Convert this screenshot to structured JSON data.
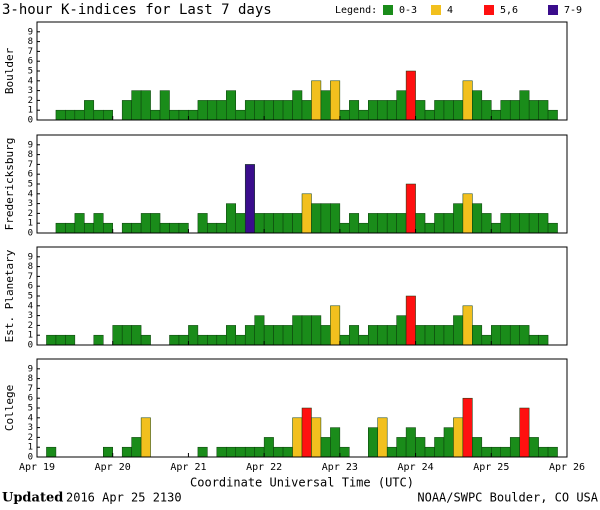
{
  "header": {
    "title": "3-hour K-indices for Last 7 days",
    "legend_title": "Legend:"
  },
  "legend": [
    {
      "label": "0-3",
      "color": "#1a8c1a"
    },
    {
      "label": "4",
      "color": "#f2c01e"
    },
    {
      "label": "5,6",
      "color": "#ff1010"
    },
    {
      "label": "7-9",
      "color": "#3a0d8c"
    }
  ],
  "chart_data": [
    {
      "type": "bar",
      "ylabel": "Boulder",
      "ylim": [
        0,
        10
      ],
      "yticks": [
        0,
        1,
        2,
        3,
        4,
        5,
        6,
        7,
        8,
        9
      ],
      "xlim": [
        0,
        7
      ],
      "values": [
        0,
        0,
        1,
        1,
        1,
        2,
        1,
        1,
        0,
        2,
        3,
        3,
        1,
        3,
        1,
        1,
        1,
        2,
        2,
        2,
        3,
        1,
        2,
        2,
        2,
        2,
        2,
        3,
        2,
        4,
        3,
        4,
        1,
        2,
        1,
        2,
        2,
        2,
        3,
        5,
        2,
        1,
        2,
        2,
        2,
        4,
        3,
        2,
        1,
        2,
        2,
        3,
        2,
        2,
        1,
        0
      ]
    },
    {
      "type": "bar",
      "ylabel": "Fredericksburg",
      "ylim": [
        0,
        10
      ],
      "yticks": [
        0,
        1,
        2,
        3,
        4,
        5,
        6,
        7,
        8,
        9
      ],
      "xlim": [
        0,
        7
      ],
      "values": [
        0,
        0,
        1,
        1,
        2,
        1,
        2,
        1,
        0,
        1,
        1,
        2,
        2,
        1,
        1,
        1,
        0,
        2,
        1,
        1,
        3,
        2,
        7,
        2,
        2,
        2,
        2,
        2,
        4,
        3,
        3,
        3,
        1,
        2,
        1,
        2,
        2,
        2,
        2,
        5,
        2,
        1,
        2,
        2,
        3,
        4,
        3,
        2,
        1,
        2,
        2,
        2,
        2,
        2,
        1,
        0
      ]
    },
    {
      "type": "bar",
      "ylabel": "Est. Planetary",
      "ylim": [
        0,
        10
      ],
      "yticks": [
        0,
        1,
        2,
        3,
        4,
        5,
        6,
        7,
        8,
        9
      ],
      "xlim": [
        0,
        7
      ],
      "values": [
        0,
        1,
        1,
        1,
        0,
        0,
        1,
        0,
        2,
        2,
        2,
        1,
        0,
        0,
        1,
        1,
        2,
        1,
        1,
        1,
        2,
        1,
        2,
        3,
        2,
        2,
        2,
        3,
        3,
        3,
        2,
        4,
        1,
        2,
        1,
        2,
        2,
        2,
        3,
        5,
        2,
        2,
        2,
        2,
        3,
        4,
        2,
        1,
        2,
        2,
        2,
        2,
        1,
        1,
        0,
        0
      ]
    },
    {
      "type": "bar",
      "ylabel": "College",
      "ylim": [
        0,
        10
      ],
      "yticks": [
        0,
        1,
        2,
        3,
        4,
        5,
        6,
        7,
        8,
        9
      ],
      "xlim": [
        0,
        7
      ],
      "xlabel": "Coordinate Universal Time (UTC)",
      "xticks": [
        {
          "value": 0,
          "label": "Apr 19"
        },
        {
          "value": 1,
          "label": "Apr 20"
        },
        {
          "value": 2,
          "label": "Apr 21"
        },
        {
          "value": 3,
          "label": "Apr 22"
        },
        {
          "value": 4,
          "label": "Apr 23"
        },
        {
          "value": 5,
          "label": "Apr 24"
        },
        {
          "value": 6,
          "label": "Apr 25"
        },
        {
          "value": 7,
          "label": "Apr 26"
        }
      ],
      "values": [
        0,
        1,
        0,
        0,
        0,
        0,
        0,
        1,
        0,
        1,
        2,
        4,
        0,
        0,
        0,
        0,
        0,
        1,
        0,
        1,
        1,
        1,
        1,
        1,
        2,
        1,
        1,
        4,
        5,
        4,
        2,
        3,
        1,
        0,
        0,
        3,
        4,
        1,
        2,
        3,
        2,
        1,
        2,
        3,
        4,
        6,
        2,
        1,
        1,
        1,
        2,
        5,
        2,
        1,
        1,
        0
      ]
    }
  ],
  "footer": {
    "updated_label": "Updated",
    "updated": "2016 Apr 25 2130",
    "source": "NOAA/SWPC Boulder, CO USA"
  }
}
